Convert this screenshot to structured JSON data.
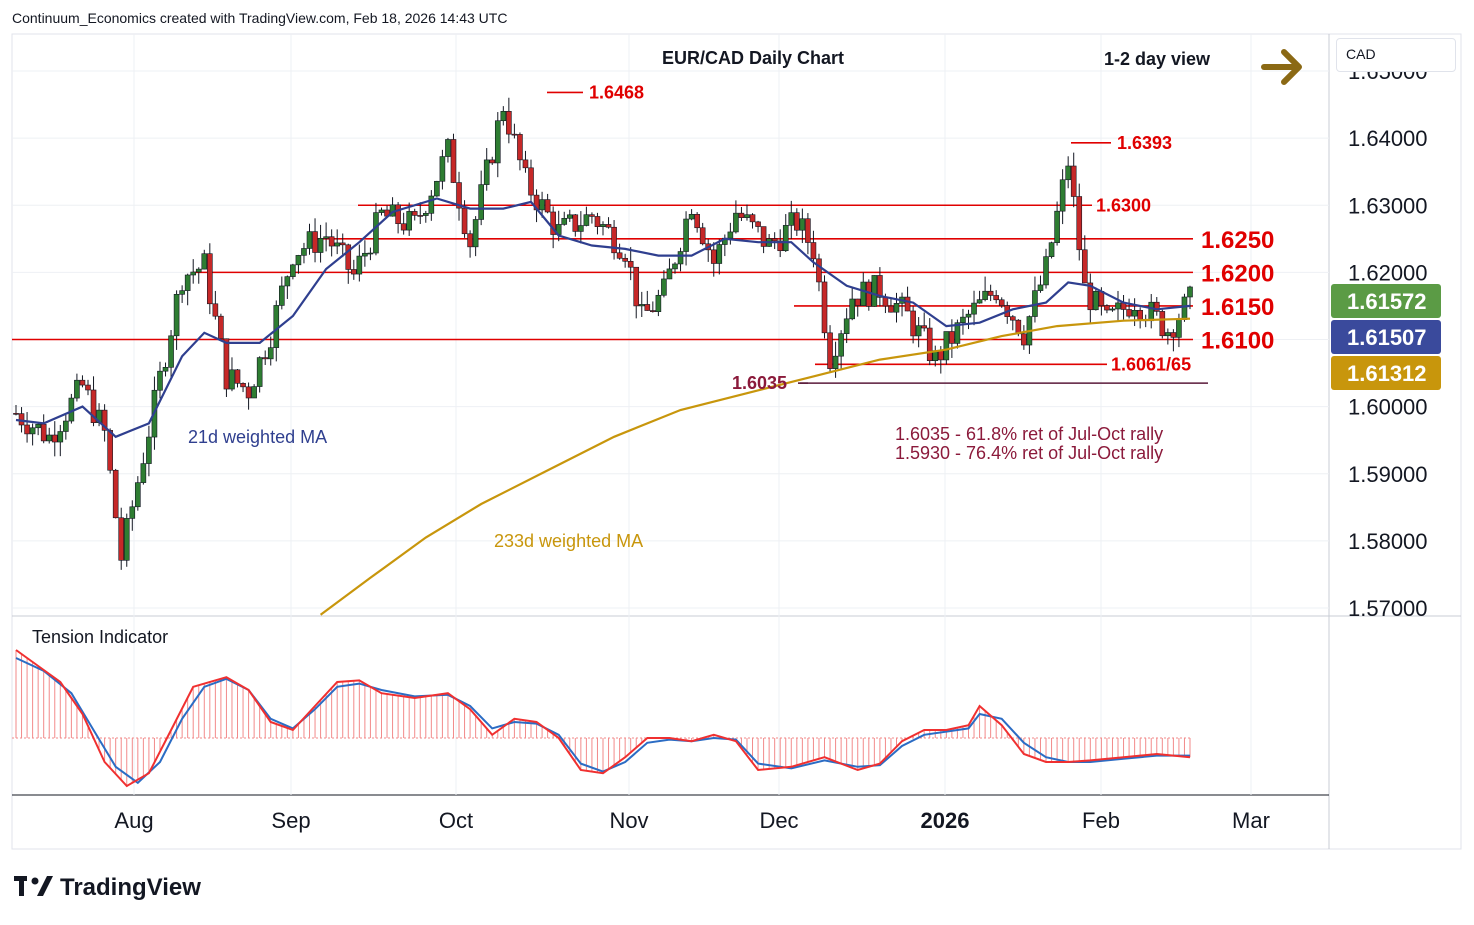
{
  "header": {
    "attribution": "Continuum_Economics created with TradingView.com, Feb 18, 2026 14:43 UTC"
  },
  "brand": {
    "name": "TradingView"
  },
  "currency_label": "CAD",
  "chart_data": {
    "type": "candlestick",
    "title": "EUR/CAD Daily Chart",
    "view_label": "1-2 day view",
    "view_arrow": "right",
    "price_axis_ticks": [
      "1.65000",
      "1.64000",
      "1.63000",
      "1.62000",
      "1.61000",
      "1.60000",
      "1.59000",
      "1.58000",
      "1.57000"
    ],
    "ylim": [
      1.57,
      1.65
    ],
    "time_axis_labels": [
      "Aug",
      "Sep",
      "Oct",
      "Nov",
      "Dec",
      "2026",
      "Feb",
      "Mar"
    ],
    "price_tags": [
      {
        "value": "1.61572",
        "color": "#5b9b45"
      },
      {
        "value": "1.61507",
        "color": "#3a4a9c"
      },
      {
        "value": "1.61312",
        "color": "#c8960c"
      }
    ],
    "horizontal_levels": [
      {
        "value": 1.625,
        "label": "1.6250",
        "style": "bold"
      },
      {
        "value": 1.62,
        "label": "1.6200",
        "style": "bold"
      },
      {
        "value": 1.615,
        "label": "1.6150",
        "style": "bold"
      },
      {
        "value": 1.61,
        "label": "1.6100",
        "style": "bold"
      },
      {
        "value": 1.63,
        "label": "1.6300",
        "style": "normal"
      },
      {
        "value": 1.6063,
        "label": "1.6061/65",
        "style": "normal"
      }
    ],
    "peak_labels": [
      {
        "value": 1.6468,
        "label": "1.6468"
      },
      {
        "value": 1.6393,
        "label": "1.6393"
      }
    ],
    "retracement_line": {
      "value": 1.6035,
      "label": "1.6035"
    },
    "notes": [
      "1.6035 - 61.8% ret of Jul-Oct rally",
      "1.5930 - 76.4% ret of Jul-Oct rally"
    ],
    "series_labels": {
      "ma21": "21d weighted MA",
      "ma233": "233d weighted MA"
    },
    "indicator": {
      "title": "Tension Indicator"
    },
    "colors": {
      "up": "#2e7d32",
      "down": "#c62828",
      "ma21": "#2f3f8f",
      "ma233": "#c8960c",
      "level": "#e00000",
      "note": "#8b1a3b",
      "indicator_line": "#f03030",
      "indicator_signal": "#2b6cc4"
    },
    "trend_path": [
      [
        0,
        1.599
      ],
      [
        6,
        1.5955
      ],
      [
        12,
        1.603
      ],
      [
        16,
        1.596
      ],
      [
        19,
        1.5775
      ],
      [
        24,
        1.5965
      ],
      [
        30,
        1.6195
      ],
      [
        34,
        1.621
      ],
      [
        38,
        1.6045
      ],
      [
        42,
        1.6025
      ],
      [
        46,
        1.611
      ],
      [
        50,
        1.623
      ],
      [
        56,
        1.6255
      ],
      [
        61,
        1.6195
      ],
      [
        66,
        1.6285
      ],
      [
        72,
        1.627
      ],
      [
        78,
        1.638
      ],
      [
        82,
        1.6245
      ],
      [
        88,
        1.645
      ],
      [
        92,
        1.6335
      ],
      [
        98,
        1.626
      ],
      [
        104,
        1.6285
      ],
      [
        110,
        1.6235
      ],
      [
        113,
        1.613
      ],
      [
        117,
        1.617
      ],
      [
        122,
        1.6305
      ],
      [
        126,
        1.6215
      ],
      [
        130,
        1.629
      ],
      [
        136,
        1.624
      ],
      [
        141,
        1.6275
      ],
      [
        144,
        1.6235
      ],
      [
        147,
        1.6075
      ],
      [
        151,
        1.6165
      ],
      [
        156,
        1.6175
      ],
      [
        161,
        1.6135
      ],
      [
        166,
        1.607
      ],
      [
        172,
        1.6135
      ],
      [
        177,
        1.6175
      ],
      [
        182,
        1.611
      ],
      [
        186,
        1.6205
      ],
      [
        190,
        1.6365
      ],
      [
        193,
        1.6175
      ],
      [
        197,
        1.6125
      ],
      [
        202,
        1.616
      ],
      [
        208,
        1.6115
      ],
      [
        212,
        1.6157
      ]
    ],
    "ma21_path": [
      [
        0,
        1.598
      ],
      [
        5,
        1.5975
      ],
      [
        12,
        1.6
      ],
      [
        18,
        1.5955
      ],
      [
        24,
        1.5975
      ],
      [
        30,
        1.6075
      ],
      [
        34,
        1.611
      ],
      [
        38,
        1.6095
      ],
      [
        44,
        1.6095
      ],
      [
        50,
        1.6135
      ],
      [
        56,
        1.6205
      ],
      [
        62,
        1.6245
      ],
      [
        68,
        1.629
      ],
      [
        76,
        1.631
      ],
      [
        82,
        1.6295
      ],
      [
        88,
        1.6295
      ],
      [
        93,
        1.6305
      ],
      [
        98,
        1.6255
      ],
      [
        104,
        1.624
      ],
      [
        110,
        1.6235
      ],
      [
        116,
        1.6225
      ],
      [
        122,
        1.6225
      ],
      [
        128,
        1.625
      ],
      [
        134,
        1.6245
      ],
      [
        140,
        1.6245
      ],
      [
        144,
        1.6215
      ],
      [
        150,
        1.618
      ],
      [
        156,
        1.6165
      ],
      [
        162,
        1.6155
      ],
      [
        168,
        1.612
      ],
      [
        174,
        1.6125
      ],
      [
        180,
        1.6145
      ],
      [
        186,
        1.6155
      ],
      [
        190,
        1.6185
      ],
      [
        194,
        1.618
      ],
      [
        200,
        1.6155
      ],
      [
        206,
        1.6145
      ],
      [
        212,
        1.615
      ]
    ],
    "ma233_path": [
      [
        55,
        1.569
      ],
      [
        64,
        1.5745
      ],
      [
        74,
        1.5805
      ],
      [
        84,
        1.5855
      ],
      [
        96,
        1.5905
      ],
      [
        108,
        1.5955
      ],
      [
        120,
        1.5995
      ],
      [
        132,
        1.602
      ],
      [
        144,
        1.6045
      ],
      [
        156,
        1.607
      ],
      [
        168,
        1.6085
      ],
      [
        178,
        1.6105
      ],
      [
        188,
        1.612
      ],
      [
        200,
        1.6128
      ],
      [
        212,
        1.6131
      ]
    ],
    "tension_path": [
      [
        0,
        0.55
      ],
      [
        4,
        0.45
      ],
      [
        8,
        0.35
      ],
      [
        12,
        0.15
      ],
      [
        16,
        -0.15
      ],
      [
        20,
        -0.3
      ],
      [
        24,
        -0.22
      ],
      [
        28,
        0.05
      ],
      [
        32,
        0.32
      ],
      [
        38,
        0.38
      ],
      [
        42,
        0.3
      ],
      [
        46,
        0.1
      ],
      [
        50,
        0.05
      ],
      [
        54,
        0.2
      ],
      [
        58,
        0.35
      ],
      [
        62,
        0.36
      ],
      [
        66,
        0.28
      ],
      [
        72,
        0.25
      ],
      [
        78,
        0.28
      ],
      [
        82,
        0.18
      ],
      [
        86,
        0.02
      ],
      [
        90,
        0.12
      ],
      [
        94,
        0.1
      ],
      [
        98,
        0.0
      ],
      [
        102,
        -0.2
      ],
      [
        106,
        -0.22
      ],
      [
        110,
        -0.12
      ],
      [
        114,
        0.0
      ],
      [
        118,
        0.0
      ],
      [
        122,
        -0.02
      ],
      [
        126,
        0.02
      ],
      [
        130,
        -0.02
      ],
      [
        134,
        -0.2
      ],
      [
        140,
        -0.18
      ],
      [
        146,
        -0.12
      ],
      [
        152,
        -0.2
      ],
      [
        156,
        -0.16
      ],
      [
        160,
        -0.02
      ],
      [
        164,
        0.05
      ],
      [
        168,
        0.05
      ],
      [
        172,
        0.08
      ],
      [
        174,
        0.2
      ],
      [
        178,
        0.08
      ],
      [
        182,
        -0.1
      ],
      [
        186,
        -0.15
      ],
      [
        190,
        -0.15
      ],
      [
        194,
        -0.14
      ],
      [
        200,
        -0.12
      ],
      [
        206,
        -0.1
      ],
      [
        212,
        -0.12
      ]
    ],
    "tension_signal_path": [
      [
        0,
        0.5
      ],
      [
        5,
        0.42
      ],
      [
        10,
        0.28
      ],
      [
        14,
        0.05
      ],
      [
        18,
        -0.18
      ],
      [
        22,
        -0.28
      ],
      [
        26,
        -0.15
      ],
      [
        30,
        0.12
      ],
      [
        34,
        0.32
      ],
      [
        38,
        0.37
      ],
      [
        42,
        0.3
      ],
      [
        46,
        0.12
      ],
      [
        50,
        0.06
      ],
      [
        54,
        0.18
      ],
      [
        58,
        0.32
      ],
      [
        62,
        0.34
      ],
      [
        66,
        0.3
      ],
      [
        72,
        0.26
      ],
      [
        78,
        0.27
      ],
      [
        82,
        0.2
      ],
      [
        86,
        0.06
      ],
      [
        90,
        0.1
      ],
      [
        94,
        0.09
      ],
      [
        98,
        0.02
      ],
      [
        102,
        -0.16
      ],
      [
        106,
        -0.21
      ],
      [
        110,
        -0.15
      ],
      [
        114,
        -0.03
      ],
      [
        118,
        -0.01
      ],
      [
        122,
        -0.02
      ],
      [
        126,
        0.0
      ],
      [
        130,
        -0.01
      ],
      [
        134,
        -0.16
      ],
      [
        140,
        -0.19
      ],
      [
        146,
        -0.14
      ],
      [
        152,
        -0.18
      ],
      [
        156,
        -0.17
      ],
      [
        160,
        -0.05
      ],
      [
        164,
        0.02
      ],
      [
        168,
        0.04
      ],
      [
        172,
        0.06
      ],
      [
        174,
        0.15
      ],
      [
        178,
        0.12
      ],
      [
        182,
        -0.03
      ],
      [
        186,
        -0.12
      ],
      [
        190,
        -0.15
      ],
      [
        194,
        -0.15
      ],
      [
        200,
        -0.13
      ],
      [
        206,
        -0.11
      ],
      [
        212,
        -0.11
      ]
    ],
    "trading_days": 213
  }
}
